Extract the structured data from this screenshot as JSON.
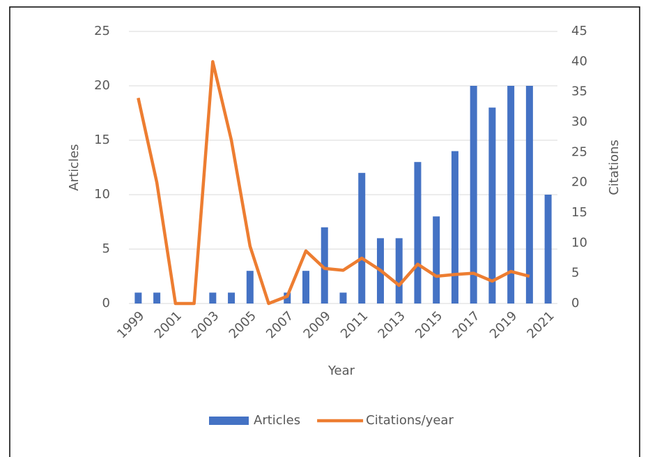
{
  "chart_data": {
    "type": "bar",
    "x_label": "Year",
    "y_label": "Articles",
    "y2_label": "Citations",
    "categories": [
      "1999",
      null,
      "2001",
      null,
      "2003",
      null,
      "2005",
      null,
      "2007",
      null,
      "2009",
      null,
      "2011",
      null,
      "2013",
      null,
      "2015",
      null,
      "2017",
      null,
      "2019",
      null,
      "2021"
    ],
    "series": [
      {
        "name": "Articles",
        "type": "bar",
        "color": "#4472c4",
        "values": [
          1,
          1,
          0,
          0,
          1,
          1,
          3,
          0,
          1,
          3,
          7,
          1,
          12,
          6,
          6,
          13,
          8,
          14,
          20,
          18,
          20,
          20,
          10
        ]
      },
      {
        "name": "Citations/year",
        "type": "line",
        "axis": "y2",
        "color": "#ed7d31",
        "values": [
          34,
          20,
          0,
          0,
          40,
          27,
          9.5,
          0,
          1.2,
          8.7,
          5.8,
          5.5,
          7.5,
          5.5,
          3,
          6.5,
          4.5,
          4.8,
          5,
          3.7,
          5.3,
          4.5,
          null
        ]
      }
    ],
    "ylim": [
      0,
      25
    ],
    "yticks": [
      0,
      5,
      10,
      15,
      20,
      25
    ],
    "y2lim": [
      0,
      45
    ],
    "y2ticks": [
      0,
      5,
      10,
      15,
      20,
      25,
      30,
      35,
      40,
      45
    ],
    "grid": true,
    "legend": "bottom"
  }
}
